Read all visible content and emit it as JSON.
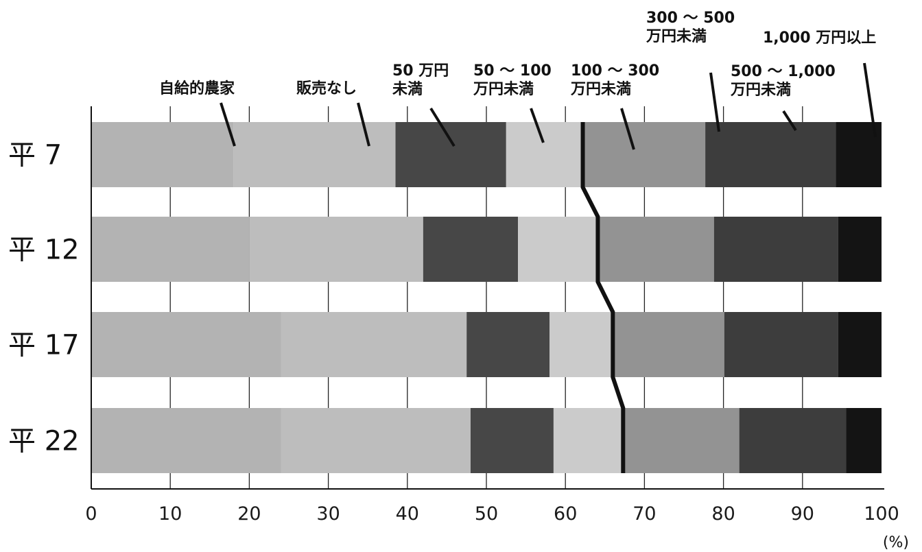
{
  "chart_data": {
    "type": "bar",
    "orientation": "horizontal",
    "stacked": true,
    "categories": [
      "平 7",
      "平 12",
      "平 17",
      "平 22"
    ],
    "series": [
      {
        "name": "自給的農家",
        "values": [
          18.0,
          20.0,
          24.0,
          24.0
        ],
        "color": "#b3b3b3"
      },
      {
        "name": "販売なし",
        "values": [
          20.5,
          22.0,
          23.5,
          24.0
        ],
        "color": "#bdbdbd"
      },
      {
        "name": "50 万円未満",
        "values": [
          14.0,
          12.0,
          10.5,
          10.5
        ],
        "color": "#474747"
      },
      {
        "name": "50 〜 100 万円未満",
        "values": [
          9.7,
          10.1,
          8.0,
          8.8
        ],
        "color": "#cbcbcb"
      },
      {
        "name": "100 〜 300 万円未満",
        "values": [
          15.5,
          14.7,
          14.1,
          14.7
        ],
        "color": "#939393"
      },
      {
        "name": "300 〜 500 万円未満",
        "values": [
          0,
          0,
          0,
          0
        ],
        "color": "#3a3a3a"
      },
      {
        "name": "500 〜 1,000 万円未満",
        "values": [
          16.5,
          15.7,
          14.4,
          13.5
        ],
        "color": "#3d3d3d"
      },
      {
        "name": "1,000 万円以上",
        "values": [
          5.8,
          5.5,
          5.5,
          4.5
        ],
        "color": "#141414"
      }
    ],
    "xlim": [
      0,
      100
    ],
    "xticks": [
      "0",
      "10",
      "20",
      "30",
      "40",
      "50",
      "60",
      "70",
      "80",
      "90",
      "100"
    ],
    "unit_label": "(%)",
    "annotations": [
      {
        "lines": [
          "自給的農家"
        ]
      },
      {
        "lines": [
          "販売なし"
        ]
      },
      {
        "lines": [
          "50 万円",
          "未満"
        ]
      },
      {
        "lines": [
          "50 〜 100",
          "万円未満"
        ]
      },
      {
        "lines": [
          "100 〜 300",
          "万円未満"
        ]
      },
      {
        "lines": [
          "300 〜 500",
          "万円未満"
        ]
      },
      {
        "lines": [
          "500 〜 1,000",
          "万円未満"
        ]
      },
      {
        "lines": [
          "1,000 万円以上"
        ]
      }
    ],
    "grid": true,
    "legend": "callouts-top"
  }
}
